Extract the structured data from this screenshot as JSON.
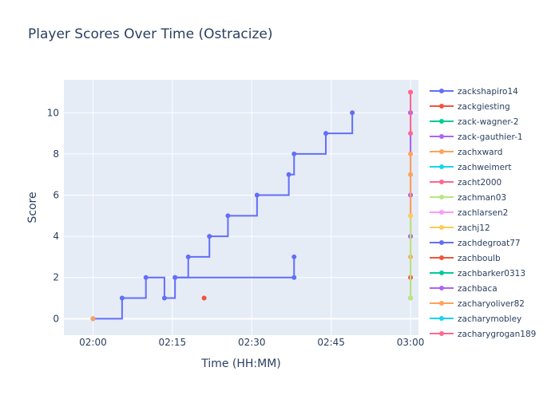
{
  "chart_data": {
    "type": "line",
    "line_shape": "step-after",
    "title": "Player Scores Over Time (Ostracize)",
    "xlabel": "Time (HH:MM)",
    "ylabel": "Score",
    "x_ticks": [
      "02:00",
      "02:15",
      "02:30",
      "02:45",
      "03:00"
    ],
    "x_tick_minutes": [
      0,
      15,
      30,
      45,
      60
    ],
    "x_range_minutes": [
      -5.5,
      61.5
    ],
    "y_ticks": [
      0,
      2,
      4,
      6,
      8,
      10
    ],
    "ylim": [
      -0.8,
      11.6
    ],
    "grid": true,
    "legend_position": "right",
    "series": [
      {
        "name": "zackshapiro14",
        "color": "#636efa",
        "points": [
          [
            "02:00",
            0
          ],
          [
            "02:05:30",
            1
          ],
          [
            "02:10",
            2
          ],
          [
            "02:13:30",
            1
          ],
          [
            "02:15:30",
            2
          ],
          [
            "02:18",
            3
          ],
          [
            "02:22",
            4
          ],
          [
            "02:25:30",
            5
          ],
          [
            "02:31",
            6
          ],
          [
            "02:37",
            7
          ],
          [
            "02:38",
            8
          ],
          [
            "02:44",
            9
          ],
          [
            "02:49",
            10
          ]
        ]
      },
      {
        "name": "zackgiesting",
        "color": "#EF553B",
        "points": [
          [
            "02:21",
            1
          ]
        ]
      },
      {
        "name": "zack-wagner-2",
        "color": "#00cc96",
        "points": []
      },
      {
        "name": "zack-gauthier-1",
        "color": "#ab63fa",
        "points": []
      },
      {
        "name": "zachxward",
        "color": "#FFA15A",
        "points": [
          [
            "02:00",
            0
          ]
        ]
      },
      {
        "name": "zachweimert",
        "color": "#19d3f3",
        "points": []
      },
      {
        "name": "zacht2000",
        "color": "#FF6692",
        "points": []
      },
      {
        "name": "zachman03",
        "color": "#B6E880",
        "points": []
      },
      {
        "name": "zachlarsen2",
        "color": "#FF97FF",
        "points": []
      },
      {
        "name": "zachj12",
        "color": "#FECB52",
        "points": []
      },
      {
        "name": "zachdegroat77",
        "color": "#636efa",
        "points": [
          [
            "02:15:30",
            2
          ],
          [
            "02:38",
            2
          ],
          [
            "02:38",
            3
          ]
        ]
      },
      {
        "name": "zachboulb",
        "color": "#EF553B",
        "points": [
          [
            "03:00",
            1
          ],
          [
            "03:00",
            2
          ],
          [
            "03:00",
            4
          ],
          [
            "03:00",
            6
          ],
          [
            "03:00",
            10
          ],
          [
            "03:00",
            11
          ]
        ]
      },
      {
        "name": "zachbarker0313",
        "color": "#00cc96",
        "points": []
      },
      {
        "name": "zachbaca",
        "color": "#ab63fa",
        "points": [
          [
            "03:00",
            4
          ],
          [
            "03:00",
            6
          ],
          [
            "03:00",
            10
          ]
        ]
      },
      {
        "name": "zacharyoliver82",
        "color": "#FFA15A",
        "points": [
          [
            "03:00",
            3
          ],
          [
            "03:00",
            7
          ],
          [
            "03:00",
            8
          ]
        ]
      },
      {
        "name": "zacharymobley",
        "color": "#19d3f3",
        "points": []
      },
      {
        "name": "zacharygrogan189",
        "color": "#FF6692",
        "points": [
          [
            "03:00",
            9
          ],
          [
            "03:00",
            11
          ]
        ]
      },
      {
        "name": "",
        "color": "#B6E880",
        "points": [
          [
            "03:00",
            1
          ],
          [
            "03:00",
            5
          ]
        ]
      },
      {
        "name": "",
        "color": "#FECB52",
        "points": [
          [
            "03:00",
            5
          ]
        ]
      }
    ]
  }
}
